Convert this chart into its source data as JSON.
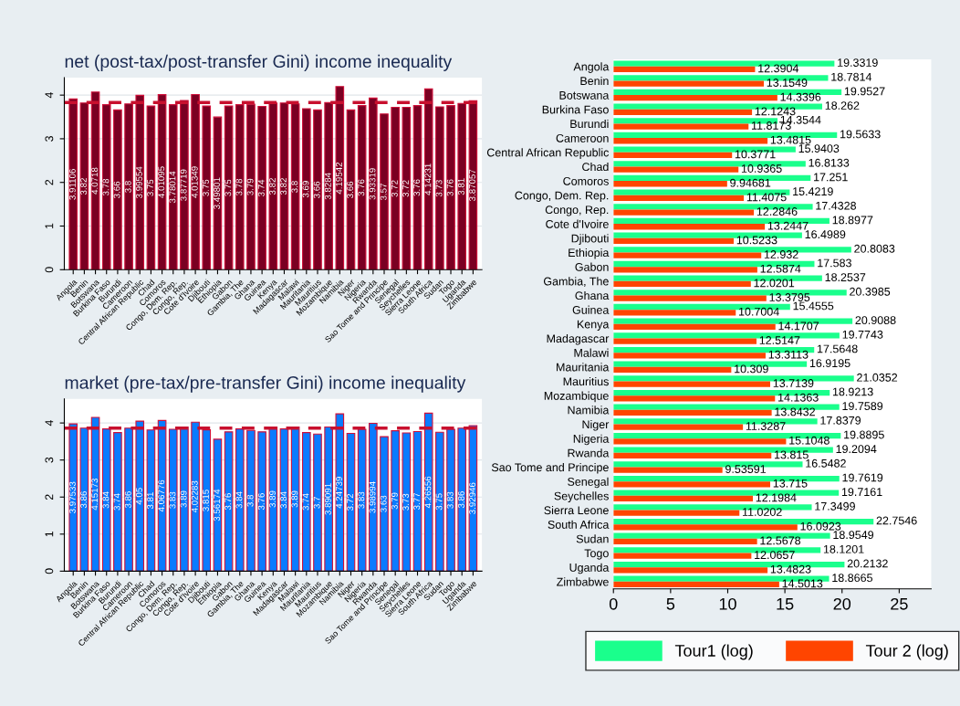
{
  "chart_data": [
    {
      "type": "bar",
      "title": "net (post-tax/post-transfer Gini) income inequality",
      "categories": [
        "Angola",
        "Benin",
        "Botswana",
        "Burkina Faso",
        "Burundi",
        "Cameroon",
        "Central African Republic",
        "Chad",
        "Comoros",
        "Congo, Dem. Rep.",
        "Congo, Rep.",
        "Cote d'Ivoire",
        "Djibouti",
        "Ethiopia",
        "Gabon",
        "Gambia, The",
        "Ghana",
        "Guinea",
        "Kenya",
        "Madagascar",
        "Malawi",
        "Mauritania",
        "Mauritius",
        "Mozambique",
        "Namibia",
        "Niger",
        "Nigeria",
        "Rwanda",
        "Sao Tome and Principe",
        "Senegal",
        "Seychelles",
        "Sierra Leone",
        "South Africa",
        "Sudan",
        "Togo",
        "Uganda",
        "Zimbabwe"
      ],
      "values": [
        3.91106,
        3.82,
        4.0718,
        3.78,
        3.66,
        3.8,
        3.99554,
        3.75,
        4.01095,
        3.78014,
        3.87719,
        4.01349,
        3.75,
        3.49801,
        3.75,
        3.78,
        3.79,
        3.74,
        3.82,
        3.82,
        3.8,
        3.69,
        3.66,
        3.8284,
        4.19542,
        3.66,
        3.76,
        3.93319,
        3.57,
        3.72,
        3.72,
        3.76,
        4.14231,
        3.73,
        3.76,
        3.81,
        3.87057
      ],
      "color": "#7a0022",
      "ylim": [
        0,
        4.4
      ],
      "yticks": [
        0,
        1,
        2,
        3,
        4
      ],
      "grid": "y",
      "data_labels": true,
      "ref_lines": [
        {
          "axis": "y",
          "value": 3.83,
          "color": "#c8102e",
          "line_style": "dashed"
        }
      ]
    },
    {
      "type": "bar",
      "title": "market (pre-tax/pre-transfer Gini) income inequality",
      "categories": [
        "Angola",
        "Benin",
        "Botswana",
        "Burkina Faso",
        "Burundi",
        "Cameroon",
        "Central African Republic",
        "Chad",
        "Comoros",
        "Congo, Dem. Rep.",
        "Congo, Rep.",
        "Cote d'Ivoire",
        "Djibouti",
        "Ethiopia",
        "Gabon",
        "Gambia, The",
        "Ghana",
        "Guinea",
        "Kenya",
        "Madagascar",
        "Malawi",
        "Mauritania",
        "Mauritius",
        "Mozambique",
        "Namibia",
        "Niger",
        "Nigeria",
        "Rwanda",
        "Sao Tome and Principe",
        "Senegal",
        "Seychelles",
        "Sierra Leone",
        "South Africa",
        "Sudan",
        "Togo",
        "Uganda",
        "Zimbabwe"
      ],
      "values": [
        3.97533,
        3.86,
        4.15173,
        3.84,
        3.74,
        3.86,
        4.05,
        3.81,
        4.06776,
        3.83,
        3.89,
        4.02283,
        3.815,
        3.56174,
        3.76,
        3.84,
        3.8,
        3.76,
        3.89,
        3.84,
        3.89,
        3.74,
        3.7,
        3.89091,
        4.24739,
        3.72,
        3.83,
        3.98994,
        3.63,
        3.79,
        3.73,
        3.77,
        4.26556,
        3.75,
        3.83,
        3.86,
        3.92946
      ],
      "color": "#0a7bff",
      "ylim": [
        0,
        4.65
      ],
      "yticks": [
        0,
        1,
        2,
        3,
        4
      ],
      "grid": "y",
      "data_labels": true,
      "ref_lines": [
        {
          "axis": "y",
          "value": 3.86,
          "color": "#c8102e",
          "line_style": "dashed"
        }
      ]
    },
    {
      "type": "bar",
      "orientation": "horizontal",
      "categories": [
        "Angola",
        "Benin",
        "Botswana",
        "Burkina Faso",
        "Burundi",
        "Cameroon",
        "Central African Republic",
        "Chad",
        "Comoros",
        "Congo, Dem. Rep.",
        "Congo, Rep.",
        "Cote d'Ivoire",
        "Djibouti",
        "Ethiopia",
        "Gabon",
        "Gambia, The",
        "Ghana",
        "Guinea",
        "Kenya",
        "Madagascar",
        "Malawi",
        "Mauritania",
        "Mauritius",
        "Mozambique",
        "Namibia",
        "Niger",
        "Nigeria",
        "Rwanda",
        "Sao Tome and Principe",
        "Senegal",
        "Seychelles",
        "Sierra Leone",
        "South Africa",
        "Sudan",
        "Togo",
        "Uganda",
        "Zimbabwe"
      ],
      "series": [
        {
          "name": "Tour1 (log)",
          "color": "#1aff8c",
          "values": [
            19.3319,
            18.7814,
            19.9527,
            18.262,
            14.3544,
            19.5633,
            15.9403,
            16.8133,
            17.251,
            15.4219,
            17.4328,
            18.8977,
            16.4989,
            20.8083,
            17.583,
            18.2537,
            20.3985,
            15.4555,
            20.9088,
            19.7743,
            17.5648,
            16.9195,
            21.0352,
            18.9213,
            19.7589,
            17.8379,
            19.8895,
            19.2094,
            16.5482,
            19.7619,
            19.7161,
            17.3499,
            22.7546,
            18.9549,
            18.1201,
            20.2132,
            18.8665
          ]
        },
        {
          "name": "Tour 2 (log)",
          "color": "#ff4500",
          "values": [
            12.3904,
            13.1549,
            14.3396,
            12.1243,
            11.8173,
            13.4815,
            10.3771,
            10.9365,
            9.94681,
            11.4075,
            12.2846,
            13.2447,
            10.5233,
            12.932,
            12.5874,
            12.0201,
            13.3795,
            10.7004,
            14.1707,
            12.5147,
            13.3113,
            10.309,
            13.7139,
            14.1363,
            13.8432,
            11.3287,
            15.1048,
            13.815,
            9.53591,
            13.715,
            12.1984,
            11.0202,
            16.0923,
            12.5678,
            12.0657,
            13.4823,
            14.5013
          ]
        }
      ],
      "xlim": [
        0,
        27.8
      ],
      "xticks": [
        0,
        5,
        10,
        15,
        20,
        25
      ],
      "grid": false,
      "data_labels": true,
      "legend": "bottom"
    }
  ]
}
